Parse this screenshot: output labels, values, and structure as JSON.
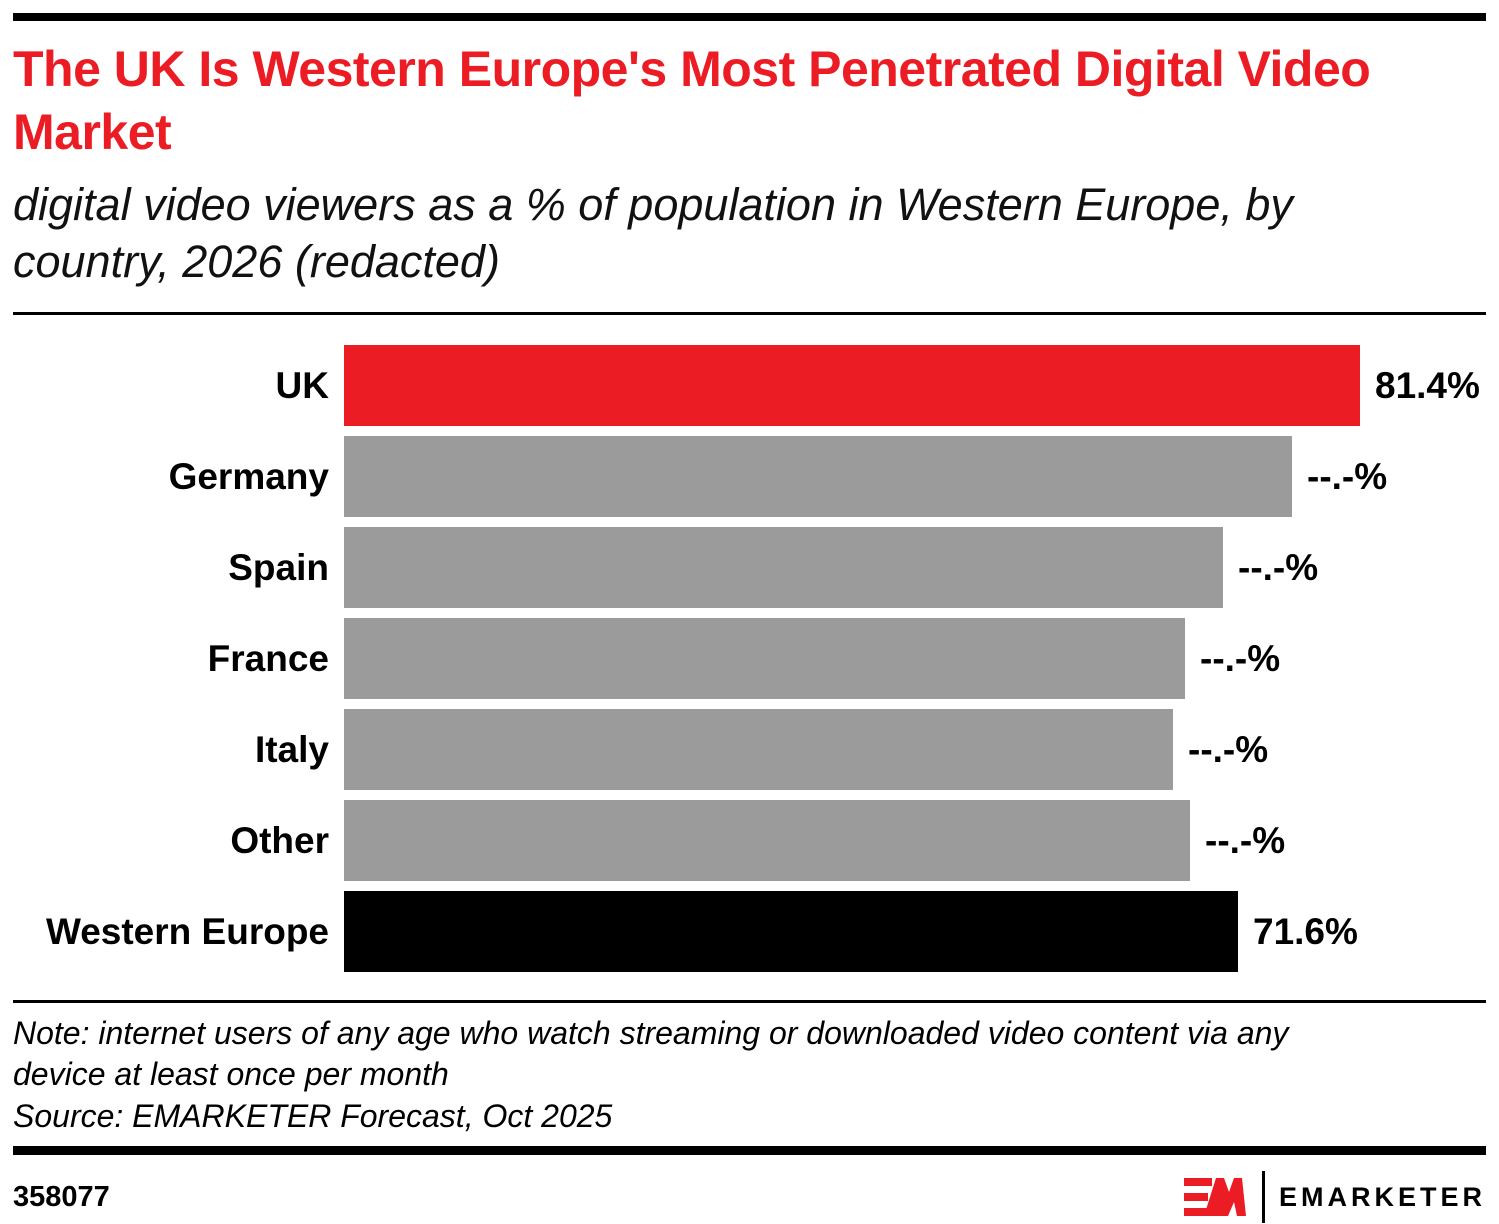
{
  "header": {
    "title": "The UK Is Western Europe's Most Penetrated Digital Video Market",
    "subtitle": "digital video viewers as a % of population in Western Europe, by country, 2026 (redacted)"
  },
  "chart_data": {
    "type": "bar",
    "orientation": "horizontal",
    "title": "The UK Is Western Europe's Most Penetrated Digital Video Market",
    "subtitle": "digital video viewers as a % of population in Western Europe, by country, 2026 (redacted)",
    "xlabel": "",
    "ylabel": "",
    "xlim": [
      0,
      91.5
    ],
    "grid": false,
    "legend": false,
    "categories": [
      "UK",
      "Germany",
      "Spain",
      "France",
      "Italy",
      "Other",
      "Western Europe"
    ],
    "values": [
      81.4,
      76.0,
      70.4,
      67.4,
      66.4,
      67.8,
      71.6
    ],
    "value_labels": [
      "81.4%",
      "--.-%",
      "--.-%",
      "--.-%",
      "--.-%",
      "--.-%",
      "71.6%"
    ],
    "bar_colors": [
      "#EC1C24",
      "#9B9B9B",
      "#9B9B9B",
      "#9B9B9B",
      "#9B9B9B",
      "#9B9B9B",
      "#000000"
    ],
    "notes": "Values for Germany, Spain, France, Italy and Other are redacted on screen (--.-%); their numeric values here are estimated from bar lengths."
  },
  "footnote": {
    "note": "Note: internet users of any age who watch streaming or downloaded video content via any device at least once per month",
    "source": "Source: EMARKETER Forecast, Oct 2025"
  },
  "footer": {
    "chart_id": "358077",
    "brand": "EMARKETER",
    "logo_icon": "emarketer-em-icon"
  },
  "colors": {
    "accent_red": "#EC1C24",
    "bar_gray": "#9B9B9B",
    "bar_black": "#000000",
    "rule_black": "#000000"
  }
}
